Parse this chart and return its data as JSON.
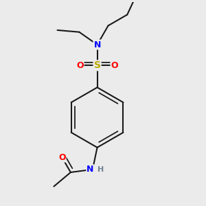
{
  "background_color": "#ebebeb",
  "bond_color": "#1a1a1a",
  "bond_width": 1.5,
  "atom_colors": {
    "N": "#0000ff",
    "S": "#bbaa00",
    "O": "#ff0000",
    "H": "#708090",
    "C": "#1a1a1a"
  },
  "figsize": [
    3.0,
    3.0
  ],
  "dpi": 100
}
